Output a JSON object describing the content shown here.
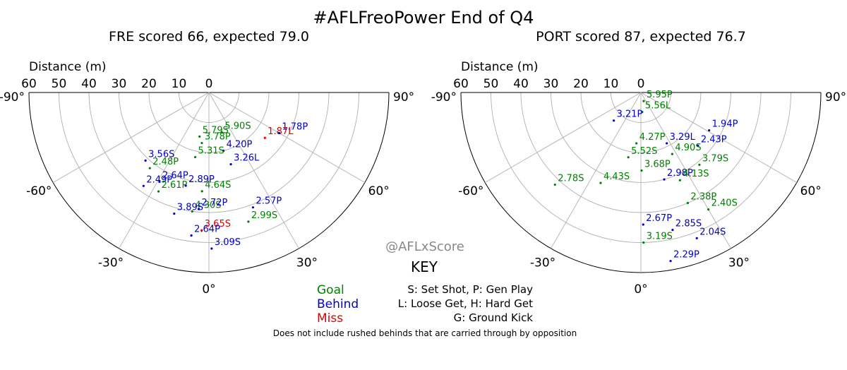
{
  "title": "#AFLFreoPower End of Q4",
  "watermark": "@AFLxScore",
  "colors": {
    "goal": "#008000",
    "behind": "#0000cc",
    "miss": "#dd0000",
    "grid": "#b0b0b0",
    "frame": "#000000"
  },
  "key": {
    "title": "KEY",
    "outcomes": [
      {
        "label": "Goal",
        "color": "#008000"
      },
      {
        "label": "Behind",
        "color": "#0000cc"
      },
      {
        "label": "Miss",
        "color": "#dd0000"
      }
    ],
    "types": [
      "S: Set Shot, P: Gen Play",
      "L: Loose Get, H: Hard Get",
      "G: Ground Kick"
    ],
    "footnote": "Does not include rushed behinds that are carried through by opposition"
  },
  "chart_data": [
    {
      "type": "scatter",
      "subtitle": "FRE scored 66, expected 79.0",
      "rlabel": "Distance (m)",
      "r_ticks": [
        "60",
        "50",
        "40",
        "30",
        "20",
        "10",
        "0"
      ],
      "theta_ticks": [
        "-90°",
        "-60°",
        "-30°",
        "0°",
        "30°",
        "60°",
        "90°"
      ],
      "rlim": [
        0,
        60
      ],
      "thetalim": [
        -90,
        90
      ],
      "shots": [
        {
          "label": "1.87L",
          "outcome": "miss",
          "theta": 51,
          "r": 24
        },
        {
          "label": "1.78P",
          "outcome": "behind",
          "theta": 60,
          "r": 27
        },
        {
          "label": "5.79S",
          "outcome": "goal",
          "theta": -12,
          "r": 15
        },
        {
          "label": "5.90S",
          "outcome": "goal",
          "theta": 18,
          "r": 14
        },
        {
          "label": "3.78P",
          "outcome": "goal",
          "theta": -8,
          "r": 17
        },
        {
          "label": "4.20P",
          "outcome": "behind",
          "theta": 14,
          "r": 20
        },
        {
          "label": "5.31S",
          "outcome": "goal",
          "theta": -12,
          "r": 22
        },
        {
          "label": "3.26L",
          "outcome": "behind",
          "theta": 17,
          "r": 25
        },
        {
          "label": "3.56S",
          "outcome": "behind",
          "theta": -43,
          "r": 31
        },
        {
          "label": "2.48P",
          "outcome": "goal",
          "theta": -38,
          "r": 32
        },
        {
          "label": "2.64P",
          "outcome": "behind",
          "theta": -29,
          "r": 34
        },
        {
          "label": "2.89P",
          "outcome": "behind",
          "theta": -14,
          "r": 32
        },
        {
          "label": "4.64S",
          "outcome": "goal",
          "theta": -4,
          "r": 33
        },
        {
          "label": "2.49P",
          "outcome": "behind",
          "theta": -35,
          "r": 38
        },
        {
          "label": "2.61P",
          "outcome": "goal",
          "theta": -27,
          "r": 37
        },
        {
          "label": "4.30S",
          "outcome": "goal",
          "theta": -8,
          "r": 40
        },
        {
          "label": "3.89S",
          "outcome": "behind",
          "theta": -16,
          "r": 42
        },
        {
          "label": "2.72P",
          "outcome": "behind",
          "theta": -5,
          "r": 39
        },
        {
          "label": "2.57P",
          "outcome": "behind",
          "theta": 21,
          "r": 41
        },
        {
          "label": "2.99S",
          "outcome": "goal",
          "theta": 17,
          "r": 45
        },
        {
          "label": "3.65S",
          "outcome": "miss",
          "theta": -3,
          "r": 46
        },
        {
          "label": "2.64P",
          "outcome": "behind",
          "theta": -7,
          "r": 48
        },
        {
          "label": "3.09S",
          "outcome": "behind",
          "theta": 1,
          "r": 52
        }
      ]
    },
    {
      "type": "scatter",
      "subtitle": "PORT scored 87, expected 76.7",
      "rlabel": "Distance (m)",
      "r_ticks": [
        "60",
        "50",
        "40",
        "30",
        "20",
        "10",
        "0"
      ],
      "theta_ticks": [
        "-90°",
        "-60°",
        "-30°",
        "0°",
        "30°",
        "60°",
        "90°"
      ],
      "rlim": [
        0,
        60
      ],
      "thetalim": [
        -90,
        90
      ],
      "shots": [
        {
          "label": "5.95P",
          "outcome": "goal",
          "theta": 18,
          "r": 3
        },
        {
          "label": "5.56L",
          "outcome": "goal",
          "theta": 4,
          "r": 6.5
        },
        {
          "label": "3.21P",
          "outcome": "behind",
          "theta": -44,
          "r": 13
        },
        {
          "label": "1.94P",
          "outcome": "behind",
          "theta": 61,
          "r": 26
        },
        {
          "label": "4.27P",
          "outcome": "goal",
          "theta": -5,
          "r": 17
        },
        {
          "label": "3.29L",
          "outcome": "behind",
          "theta": 27,
          "r": 19
        },
        {
          "label": "2.43P",
          "outcome": "behind",
          "theta": 47,
          "r": 26
        },
        {
          "label": "4.90S",
          "outcome": "goal",
          "theta": 27,
          "r": 23
        },
        {
          "label": "5.52S",
          "outcome": "goal",
          "theta": -11,
          "r": 22
        },
        {
          "label": "3.68P",
          "outcome": "goal",
          "theta": 0.5,
          "r": 26
        },
        {
          "label": "3.79S",
          "outcome": "goal",
          "theta": 39,
          "r": 31
        },
        {
          "label": "2.98P",
          "outcome": "behind",
          "theta": 15,
          "r": 30
        },
        {
          "label": "4.13S",
          "outcome": "goal",
          "theta": 24,
          "r": 32
        },
        {
          "label": "4.43S",
          "outcome": "goal",
          "theta": -24,
          "r": 33
        },
        {
          "label": "2.78S",
          "outcome": "goal",
          "theta": -43,
          "r": 42
        },
        {
          "label": "2.38P",
          "outcome": "goal",
          "theta": 23,
          "r": 40
        },
        {
          "label": "2.40S",
          "outcome": "goal",
          "theta": 30,
          "r": 45
        },
        {
          "label": "2.67P",
          "outcome": "behind",
          "theta": 1,
          "r": 44
        },
        {
          "label": "2.85S",
          "outcome": "behind",
          "theta": 13,
          "r": 47
        },
        {
          "label": "3.19S",
          "outcome": "goal",
          "theta": 1,
          "r": 50
        },
        {
          "label": "2.04S",
          "outcome": "behind",
          "theta": 21,
          "r": 52
        },
        {
          "label": "2.29P",
          "outcome": "behind",
          "theta": 10,
          "r": 57
        }
      ]
    }
  ]
}
